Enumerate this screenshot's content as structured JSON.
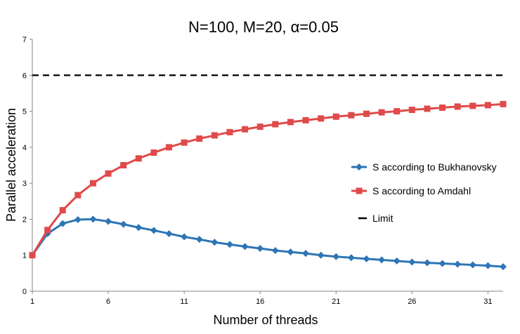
{
  "chart_data": {
    "type": "line",
    "title": "N=100, M=20, α=0.05",
    "xlabel": "Number of threads",
    "ylabel": "Parallel acceleration",
    "xlim": [
      1,
      32
    ],
    "ylim": [
      0,
      7
    ],
    "x_ticks": [
      1,
      6,
      11,
      16,
      21,
      26,
      31
    ],
    "y_ticks": [
      0,
      1,
      2,
      3,
      4,
      5,
      6,
      7
    ],
    "grid": false,
    "legend_position": "right",
    "x": [
      1,
      2,
      3,
      4,
      5,
      6,
      7,
      8,
      9,
      10,
      11,
      12,
      13,
      14,
      15,
      16,
      17,
      18,
      19,
      20,
      21,
      22,
      23,
      24,
      25,
      26,
      27,
      28,
      29,
      30,
      31,
      32
    ],
    "series": [
      {
        "name": "S according to Bukhanovsky",
        "color": "#2e75b6",
        "marker": "diamond",
        "values": [
          1.0,
          1.6,
          1.88,
          1.99,
          2.0,
          1.94,
          1.86,
          1.77,
          1.69,
          1.6,
          1.51,
          1.44,
          1.36,
          1.3,
          1.24,
          1.19,
          1.13,
          1.09,
          1.05,
          1.0,
          0.96,
          0.93,
          0.9,
          0.87,
          0.84,
          0.81,
          0.79,
          0.77,
          0.75,
          0.73,
          0.71,
          0.68
        ]
      },
      {
        "name": "S according to Amdahl",
        "color": "#e04a4a",
        "marker": "square",
        "values": [
          1.0,
          1.7,
          2.25,
          2.67,
          3.0,
          3.27,
          3.5,
          3.69,
          3.85,
          4.0,
          4.13,
          4.24,
          4.33,
          4.42,
          4.5,
          4.57,
          4.64,
          4.7,
          4.75,
          4.8,
          4.85,
          4.89,
          4.93,
          4.97,
          5.0,
          5.04,
          5.07,
          5.1,
          5.13,
          5.15,
          5.17,
          5.2
        ]
      },
      {
        "name": "Limit",
        "color": "#000000",
        "style": "dashed",
        "values": [
          6,
          6,
          6,
          6,
          6,
          6,
          6,
          6,
          6,
          6,
          6,
          6,
          6,
          6,
          6,
          6,
          6,
          6,
          6,
          6,
          6,
          6,
          6,
          6,
          6,
          6,
          6,
          6,
          6,
          6,
          6,
          6
        ]
      }
    ]
  }
}
